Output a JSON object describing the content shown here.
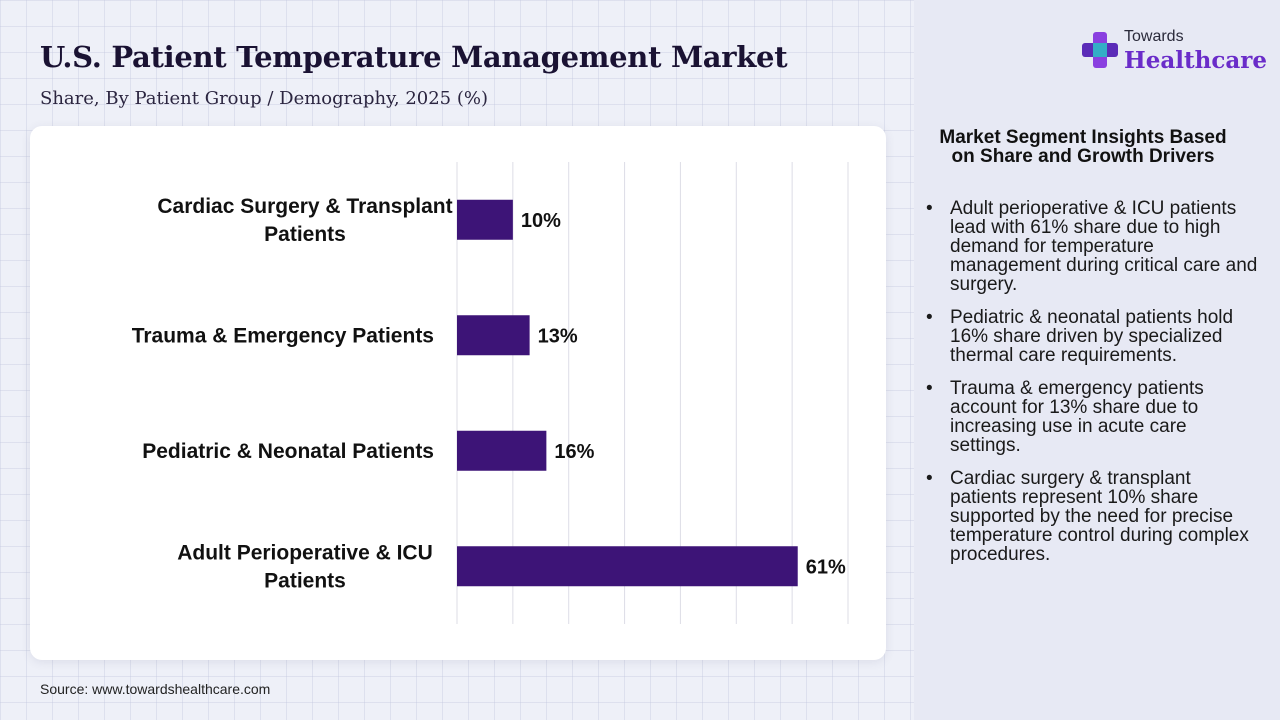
{
  "header": {
    "title": "U.S. Patient Temperature Management Market",
    "subtitle": "Share, By Patient Group / Demography, 2025 (%)"
  },
  "logo": {
    "small": "Towards",
    "big": "Healthcare",
    "icon": "plus-cross-icon"
  },
  "colors": {
    "bar": "#3d1477",
    "brand": "#6a2cc9",
    "grid": "#dddde6"
  },
  "chart_data": {
    "type": "bar",
    "orientation": "horizontal",
    "categories": [
      "Cardiac Surgery & Transplant Patients",
      "Trauma & Emergency Patients",
      "Pediatric & Neonatal Patients",
      "Adult Perioperative & ICU Patients"
    ],
    "values": [
      10,
      13,
      16,
      61
    ],
    "data_labels": [
      "10%",
      "13%",
      "16%",
      "61%"
    ],
    "xlim": [
      0,
      70
    ],
    "grid": true,
    "title": "U.S. Patient Temperature Management Market",
    "subtitle": "Share, By Patient Group / Demography, 2025 (%)"
  },
  "insights": {
    "title": "Market Segment Insights Based on Share and Growth Drivers",
    "items": [
      "Adult perioperative & ICU patients lead with 61% share due to high demand for temperature management during critical care and surgery.",
      "Pediatric & neonatal patients hold 16% share driven by specialized thermal care requirements.",
      "Trauma & emergency patients account for 13% share due to increasing use in acute care settings.",
      "Cardiac surgery & transplant patients represent 10% share supported by the need for precise temperature control during complex procedures."
    ]
  },
  "footer": {
    "source": "Source: www.towardshealthcare.com"
  }
}
